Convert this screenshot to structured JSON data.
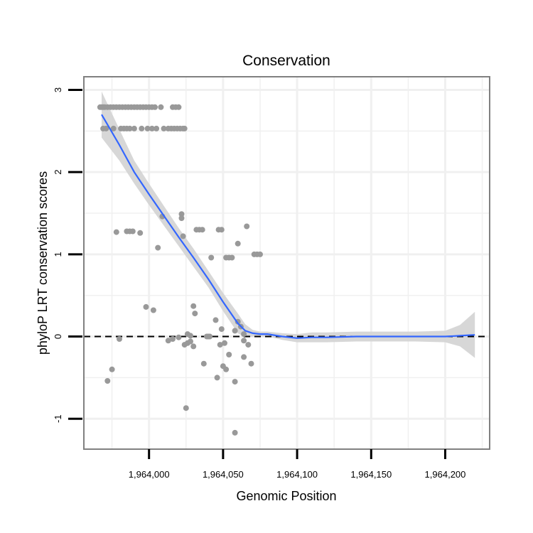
{
  "chart_data": {
    "type": "scatter",
    "title": "Conservation",
    "xlabel": "Genomic Position",
    "ylabel": "phyloP LRT conservation scores",
    "xlim": [
      1963956,
      1964230
    ],
    "ylim": [
      -1.37,
      3.16
    ],
    "x_ticks": [
      {
        "value": 1964000,
        "label": "1,964,000"
      },
      {
        "value": 1964050,
        "label": "1,964,050"
      },
      {
        "value": 1964100,
        "label": "1,964,100"
      },
      {
        "value": 1964150,
        "label": "1,964,150"
      },
      {
        "value": 1964200,
        "label": "1,964,200"
      }
    ],
    "y_ticks": [
      {
        "value": -1,
        "label": "-1"
      },
      {
        "value": 0,
        "label": "0"
      },
      {
        "value": 1,
        "label": "1"
      },
      {
        "value": 2,
        "label": "2"
      },
      {
        "value": 3,
        "label": "3"
      }
    ],
    "grid": true,
    "reference_line": {
      "y": 0,
      "style": "dashed",
      "color": "#000000"
    },
    "colors": {
      "points": "#999999",
      "smooth_line": "#3366ff",
      "ribbon": "#d3d3d3",
      "panel_border": "#808080",
      "grid": "#f0f0f0"
    },
    "points": [
      {
        "x": 1963967,
        "y": 2.79
      },
      {
        "x": 1963968,
        "y": 2.79
      },
      {
        "x": 1963969,
        "y": 2.79
      },
      {
        "x": 1963970,
        "y": 2.79
      },
      {
        "x": 1963972,
        "y": 2.79
      },
      {
        "x": 1963974,
        "y": 2.79
      },
      {
        "x": 1963976,
        "y": 2.79
      },
      {
        "x": 1963978,
        "y": 2.79
      },
      {
        "x": 1963980,
        "y": 2.79
      },
      {
        "x": 1963982,
        "y": 2.79
      },
      {
        "x": 1963984,
        "y": 2.79
      },
      {
        "x": 1963986,
        "y": 2.79
      },
      {
        "x": 1963988,
        "y": 2.79
      },
      {
        "x": 1963990,
        "y": 2.79
      },
      {
        "x": 1963992,
        "y": 2.79
      },
      {
        "x": 1963994,
        "y": 2.79
      },
      {
        "x": 1963996,
        "y": 2.79
      },
      {
        "x": 1963998,
        "y": 2.79
      },
      {
        "x": 1964000,
        "y": 2.79
      },
      {
        "x": 1964002,
        "y": 2.79
      },
      {
        "x": 1964004,
        "y": 2.79
      },
      {
        "x": 1964008,
        "y": 2.79
      },
      {
        "x": 1964016,
        "y": 2.79
      },
      {
        "x": 1964018,
        "y": 2.79
      },
      {
        "x": 1964020,
        "y": 2.79
      },
      {
        "x": 1963969,
        "y": 2.53
      },
      {
        "x": 1963971,
        "y": 2.53
      },
      {
        "x": 1963976,
        "y": 2.53
      },
      {
        "x": 1963981,
        "y": 2.53
      },
      {
        "x": 1963983,
        "y": 2.53
      },
      {
        "x": 1963985,
        "y": 2.53
      },
      {
        "x": 1963987,
        "y": 2.53
      },
      {
        "x": 1963990,
        "y": 2.53
      },
      {
        "x": 1963995,
        "y": 2.53
      },
      {
        "x": 1963999,
        "y": 2.53
      },
      {
        "x": 1964002,
        "y": 2.53
      },
      {
        "x": 1964005,
        "y": 2.53
      },
      {
        "x": 1964010,
        "y": 2.53
      },
      {
        "x": 1964013,
        "y": 2.53
      },
      {
        "x": 1964015,
        "y": 2.53
      },
      {
        "x": 1964017,
        "y": 2.53
      },
      {
        "x": 1964019,
        "y": 2.53
      },
      {
        "x": 1964021,
        "y": 2.53
      },
      {
        "x": 1964023,
        "y": 2.53
      },
      {
        "x": 1964024,
        "y": 2.53
      },
      {
        "x": 1964022,
        "y": 1.49
      },
      {
        "x": 1964022,
        "y": 1.44
      },
      {
        "x": 1964009,
        "y": 1.46
      },
      {
        "x": 1964023,
        "y": 1.22
      },
      {
        "x": 1964066,
        "y": 1.34
      },
      {
        "x": 1963978,
        "y": 1.27
      },
      {
        "x": 1963985,
        "y": 1.28
      },
      {
        "x": 1963987,
        "y": 1.28
      },
      {
        "x": 1963989,
        "y": 1.28
      },
      {
        "x": 1963994,
        "y": 1.26
      },
      {
        "x": 1964032,
        "y": 1.3
      },
      {
        "x": 1964034,
        "y": 1.3
      },
      {
        "x": 1964036,
        "y": 1.3
      },
      {
        "x": 1964047,
        "y": 1.3
      },
      {
        "x": 1964049,
        "y": 1.3
      },
      {
        "x": 1964006,
        "y": 1.08
      },
      {
        "x": 1964060,
        "y": 1.13
      },
      {
        "x": 1964042,
        "y": 0.96
      },
      {
        "x": 1964052,
        "y": 0.96
      },
      {
        "x": 1964054,
        "y": 0.96
      },
      {
        "x": 1964056,
        "y": 0.96
      },
      {
        "x": 1964071,
        "y": 1.0
      },
      {
        "x": 1964073,
        "y": 1.0
      },
      {
        "x": 1964075,
        "y": 1.0
      },
      {
        "x": 1963998,
        "y": 0.36
      },
      {
        "x": 1964003,
        "y": 0.32
      },
      {
        "x": 1964030,
        "y": 0.37
      },
      {
        "x": 1964031,
        "y": 0.28
      },
      {
        "x": 1964045,
        "y": 0.2
      },
      {
        "x": 1964060,
        "y": 0.18
      },
      {
        "x": 1964062,
        "y": 0.12
      },
      {
        "x": 1964049,
        "y": 0.09
      },
      {
        "x": 1964058,
        "y": 0.07
      },
      {
        "x": 1964064,
        "y": 0.03
      },
      {
        "x": 1964026,
        "y": 0.03
      },
      {
        "x": 1964028,
        "y": 0.01
      },
      {
        "x": 1964039,
        "y": 0.0
      },
      {
        "x": 1964040,
        "y": 0.0
      },
      {
        "x": 1964041,
        "y": 0.0
      },
      {
        "x": 1963980,
        "y": -0.03
      },
      {
        "x": 1964013,
        "y": -0.05
      },
      {
        "x": 1964016,
        "y": -0.03
      },
      {
        "x": 1964020,
        "y": -0.01
      },
      {
        "x": 1964024,
        "y": -0.1
      },
      {
        "x": 1964026,
        "y": -0.08
      },
      {
        "x": 1964028,
        "y": -0.06
      },
      {
        "x": 1964030,
        "y": -0.12
      },
      {
        "x": 1964048,
        "y": -0.1
      },
      {
        "x": 1964051,
        "y": -0.08
      },
      {
        "x": 1964064,
        "y": -0.05
      },
      {
        "x": 1964067,
        "y": -0.1
      },
      {
        "x": 1964054,
        "y": -0.22
      },
      {
        "x": 1964064,
        "y": -0.25
      },
      {
        "x": 1964037,
        "y": -0.33
      },
      {
        "x": 1964050,
        "y": -0.36
      },
      {
        "x": 1964052,
        "y": -0.4
      },
      {
        "x": 1964069,
        "y": -0.33
      },
      {
        "x": 1963975,
        "y": -0.4
      },
      {
        "x": 1964046,
        "y": -0.5
      },
      {
        "x": 1964058,
        "y": -0.55
      },
      {
        "x": 1963972,
        "y": -0.54
      },
      {
        "x": 1964025,
        "y": -0.87
      },
      {
        "x": 1964058,
        "y": -1.17
      }
    ],
    "smooth": {
      "x": [
        1963968,
        1963980,
        1963990,
        1964000,
        1964010,
        1964020,
        1964030,
        1964040,
        1964050,
        1964060,
        1964065,
        1964070,
        1964075,
        1964080,
        1964090,
        1964100,
        1964110,
        1964120,
        1964140,
        1964160,
        1964180,
        1964200,
        1964210,
        1964220
      ],
      "y": [
        2.7,
        2.33,
        2.0,
        1.73,
        1.47,
        1.21,
        0.96,
        0.7,
        0.42,
        0.16,
        0.07,
        0.04,
        0.03,
        0.03,
        0.0,
        -0.02,
        -0.01,
        -0.01,
        0.0,
        0.0,
        0.0,
        0.0,
        0.01,
        0.02
      ],
      "ci_lower": [
        2.42,
        2.14,
        1.86,
        1.6,
        1.35,
        1.1,
        0.85,
        0.6,
        0.31,
        0.04,
        -0.01,
        0.0,
        0.0,
        0.0,
        -0.04,
        -0.07,
        -0.07,
        -0.07,
        -0.06,
        -0.06,
        -0.06,
        -0.07,
        -0.12,
        -0.26
      ],
      "ci_upper": [
        2.98,
        2.52,
        2.14,
        1.86,
        1.59,
        1.32,
        1.07,
        0.8,
        0.53,
        0.28,
        0.15,
        0.08,
        0.06,
        0.06,
        0.04,
        0.03,
        0.05,
        0.05,
        0.06,
        0.06,
        0.06,
        0.07,
        0.14,
        0.3
      ]
    }
  }
}
